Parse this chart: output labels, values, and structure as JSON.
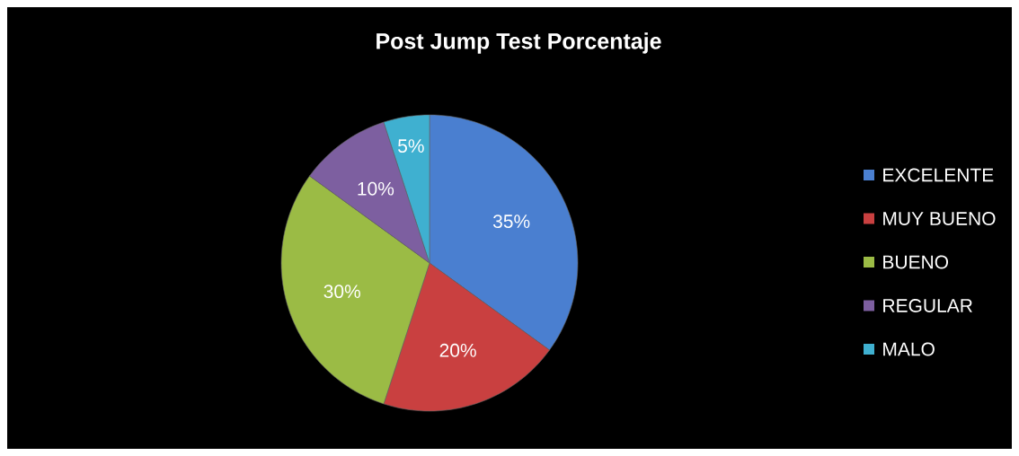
{
  "chart_data": {
    "type": "pie",
    "title": "Post Jump Test Porcentaje",
    "categories": [
      "EXCELENTE",
      "MUY BUENO",
      "BUENO",
      "REGULAR",
      "MALO"
    ],
    "values": [
      35,
      20,
      30,
      10,
      5
    ],
    "colors": [
      "#4a7fd0",
      "#c94040",
      "#9bbb45",
      "#7d5fa0",
      "#3fb0d0"
    ],
    "value_labels": [
      "35%",
      "20%",
      "30%",
      "10%",
      "5%"
    ],
    "legend": "right"
  }
}
